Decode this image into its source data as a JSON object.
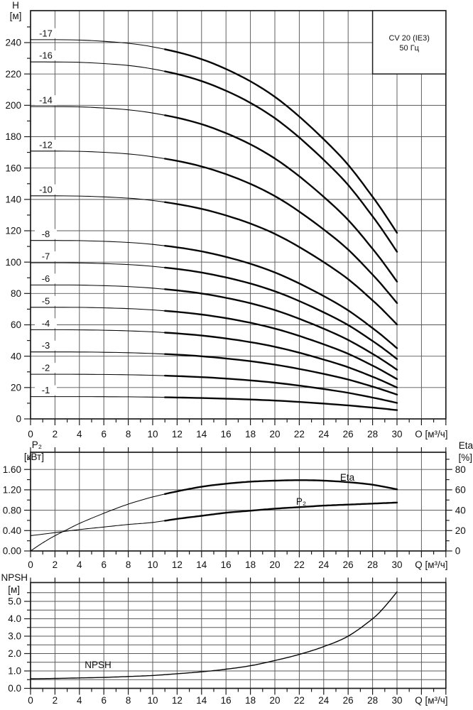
{
  "info_box": {
    "model": "CV 20 (IE3)",
    "frequency": "50 Гц"
  },
  "chart_data": [
    {
      "type": "line",
      "id": "head-vs-flow",
      "y_axis": {
        "title_lines": [
          "H",
          "[м]"
        ],
        "tick_min": 0,
        "tick_max": 240,
        "tick_step": 20,
        "minor_step": 10,
        "ylim": [
          0,
          260
        ],
        "decimals": 0
      },
      "x_axis": {
        "title": "О [м³/ч]",
        "tick_min": 0,
        "tick_max": 30,
        "tick_step": 2,
        "minor_step": 1,
        "xlim": [
          0,
          34
        ]
      },
      "grid": "on",
      "bold_from_q": 11,
      "curves": [
        {
          "label": "-1",
          "points": [
            [
              0,
              14.2
            ],
            [
              5,
              14.2
            ],
            [
              10,
              13.9
            ],
            [
              15,
              13.1
            ],
            [
              20,
              11.7
            ],
            [
              25,
              9.2
            ],
            [
              28,
              7.2
            ],
            [
              30,
              5.6
            ]
          ]
        },
        {
          "label": "-2",
          "points": [
            [
              0,
              28.5
            ],
            [
              5,
              28.4
            ],
            [
              10,
              27.8
            ],
            [
              15,
              26.2
            ],
            [
              20,
              23.1
            ],
            [
              25,
              17.9
            ],
            [
              28,
              13.6
            ],
            [
              30,
              10.2
            ]
          ]
        },
        {
          "label": "-3",
          "points": [
            [
              0,
              42.7
            ],
            [
              5,
              42.6
            ],
            [
              10,
              41.7
            ],
            [
              15,
              39.3
            ],
            [
              20,
              34.6
            ],
            [
              25,
              27.0
            ],
            [
              28,
              20.6
            ],
            [
              30,
              15.5
            ]
          ]
        },
        {
          "label": "-4",
          "points": [
            [
              0,
              56.9
            ],
            [
              5,
              56.7
            ],
            [
              10,
              55.5
            ],
            [
              15,
              52.3
            ],
            [
              20,
              46.0
            ],
            [
              25,
              35.5
            ],
            [
              28,
              26.9
            ],
            [
              30,
              20.0
            ]
          ]
        },
        {
          "label": "-5",
          "points": [
            [
              0,
              71.2
            ],
            [
              5,
              71.0
            ],
            [
              10,
              69.5
            ],
            [
              15,
              65.5
            ],
            [
              20,
              57.6
            ],
            [
              25,
              44.7
            ],
            [
              28,
              34.0
            ],
            [
              30,
              25.4
            ]
          ]
        },
        {
          "label": "-6",
          "points": [
            [
              0,
              85.4
            ],
            [
              5,
              85.2
            ],
            [
              10,
              83.4
            ],
            [
              15,
              78.7
            ],
            [
              20,
              69.4
            ],
            [
              25,
              54.1
            ],
            [
              28,
              41.5
            ],
            [
              30,
              31.4
            ]
          ]
        },
        {
          "label": "-7",
          "points": [
            [
              0,
              99.6
            ],
            [
              5,
              99.3
            ],
            [
              10,
              97.3
            ],
            [
              15,
              91.9
            ],
            [
              20,
              81.4
            ],
            [
              25,
              64.1
            ],
            [
              28,
              49.7
            ],
            [
              30,
              38.2
            ]
          ]
        },
        {
          "label": "-8",
          "points": [
            [
              0,
              113.8
            ],
            [
              5,
              113.5
            ],
            [
              10,
              111.3
            ],
            [
              15,
              105.2
            ],
            [
              20,
              93.4
            ],
            [
              25,
              74.0
            ],
            [
              28,
              57.9
            ],
            [
              30,
              45.1
            ]
          ]
        },
        {
          "label": "-10",
          "points": [
            [
              0,
              142.3
            ],
            [
              5,
              141.9
            ],
            [
              10,
              139.3
            ],
            [
              15,
              132.0
            ],
            [
              20,
              118.0
            ],
            [
              25,
              94.8
            ],
            [
              28,
              75.6
            ],
            [
              30,
              60.2
            ]
          ]
        },
        {
          "label": "-12",
          "points": [
            [
              0,
              170.8
            ],
            [
              5,
              170.4
            ],
            [
              10,
              167.2
            ],
            [
              15,
              158.7
            ],
            [
              20,
              142.1
            ],
            [
              25,
              114.7
            ],
            [
              28,
              92.0
            ],
            [
              30,
              73.9
            ]
          ]
        },
        {
          "label": "-14",
          "points": [
            [
              0,
              199.2
            ],
            [
              5,
              198.7
            ],
            [
              10,
              195.1
            ],
            [
              15,
              185.3
            ],
            [
              20,
              166.1
            ],
            [
              25,
              134.6
            ],
            [
              28,
              108.5
            ],
            [
              30,
              87.6
            ]
          ]
        },
        {
          "label": "-16",
          "points": [
            [
              0,
              227.7
            ],
            [
              5,
              227.1
            ],
            [
              10,
              223.2
            ],
            [
              15,
              212.6
            ],
            [
              20,
              191.8
            ],
            [
              25,
              157.6
            ],
            [
              28,
              129.2
            ],
            [
              30,
              106.6
            ]
          ]
        },
        {
          "label": "-17",
          "points": [
            [
              0,
              241.9
            ],
            [
              5,
              241.3
            ],
            [
              10,
              237.3
            ],
            [
              15,
              226.5
            ],
            [
              20,
              205.4
            ],
            [
              25,
              170.6
            ],
            [
              28,
              141.7
            ],
            [
              30,
              118.7
            ]
          ]
        }
      ]
    },
    {
      "type": "line",
      "id": "power-efficiency-vs-flow",
      "left_axis": {
        "title_lines": [
          "P₂",
          "[кВт]"
        ],
        "tick_min": 0,
        "tick_max": 1.6,
        "tick_step": 0.4,
        "minor_step": 0.2,
        "ylim": [
          0,
          1.94
        ],
        "decimals": 2
      },
      "right_axis": {
        "title_lines": [
          "Eta",
          "[%]"
        ],
        "tick_min": 0,
        "tick_max": 80,
        "tick_step": 20,
        "minor_step": 10,
        "ylim": [
          0,
          97
        ],
        "decimals": 0
      },
      "x_axis": {
        "title": "Q [м³/ч]",
        "tick_min": 0,
        "tick_max": 30,
        "tick_step": 2,
        "minor_step": 1,
        "xlim": [
          0,
          34
        ]
      },
      "grid": "on",
      "bold_from_q": 11,
      "series": [
        {
          "name": "Eta",
          "axis": "right",
          "points": [
            [
              0,
              0
            ],
            [
              1,
              8
            ],
            [
              2,
              15
            ],
            [
              3,
              21
            ],
            [
              4,
              27
            ],
            [
              6,
              37
            ],
            [
              8,
              46
            ],
            [
              10,
              53
            ],
            [
              12,
              58.5
            ],
            [
              14,
              63
            ],
            [
              16,
              66
            ],
            [
              18,
              68
            ],
            [
              20,
              69
            ],
            [
              22,
              69.5
            ],
            [
              24,
              69
            ],
            [
              26,
              67.5
            ],
            [
              28,
              65
            ],
            [
              30,
              60.5
            ]
          ]
        },
        {
          "name": "P₂",
          "axis": "left",
          "points": [
            [
              0,
              0.3
            ],
            [
              2,
              0.36
            ],
            [
              4,
              0.42
            ],
            [
              6,
              0.47
            ],
            [
              8,
              0.52
            ],
            [
              10,
              0.56
            ],
            [
              12,
              0.63
            ],
            [
              14,
              0.69
            ],
            [
              16,
              0.75
            ],
            [
              18,
              0.79
            ],
            [
              20,
              0.83
            ],
            [
              22,
              0.86
            ],
            [
              24,
              0.89
            ],
            [
              26,
              0.91
            ],
            [
              28,
              0.93
            ],
            [
              30,
              0.95
            ]
          ]
        }
      ]
    },
    {
      "type": "line",
      "id": "npsh-vs-flow",
      "y_axis": {
        "title_lines": [
          "NPSH",
          "[м]"
        ],
        "tick_min": 0,
        "tick_max": 5,
        "tick_step": 1,
        "minor_step": 0.5,
        "ylim": [
          0,
          6.1
        ],
        "decimals": 1
      },
      "x_axis": {
        "title": "Q [м³/ч]",
        "tick_min": 0,
        "tick_max": 30,
        "tick_step": 2,
        "minor_step": 1,
        "xlim": [
          0,
          34
        ]
      },
      "grid": "on",
      "series": [
        {
          "name": "NPSH",
          "points": [
            [
              0,
              0.55
            ],
            [
              2,
              0.57
            ],
            [
              4,
              0.6
            ],
            [
              6,
              0.63
            ],
            [
              8,
              0.68
            ],
            [
              10,
              0.74
            ],
            [
              12,
              0.84
            ],
            [
              14,
              0.95
            ],
            [
              16,
              1.1
            ],
            [
              18,
              1.3
            ],
            [
              20,
              1.6
            ],
            [
              22,
              1.95
            ],
            [
              24,
              2.4
            ],
            [
              26,
              3.0
            ],
            [
              28,
              4.0
            ],
            [
              29,
              4.7
            ],
            [
              30,
              5.55
            ]
          ]
        }
      ]
    }
  ]
}
